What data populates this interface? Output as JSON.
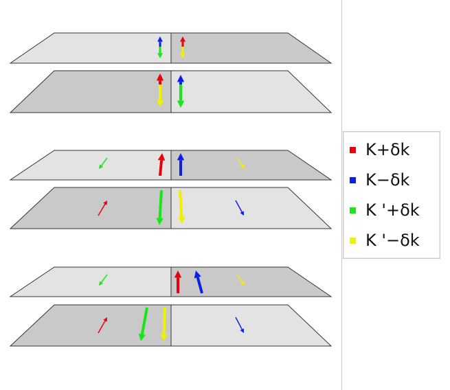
{
  "legend": {
    "items": [
      {
        "label": "K+δk",
        "color": "#e8000b"
      },
      {
        "label": "K−δk",
        "color": "#0a1fe6"
      },
      {
        "label": "K '+δk",
        "color": "#19e619"
      },
      {
        "label": "K '−δk",
        "color": "#f0f000"
      }
    ]
  },
  "colors": {
    "plate_light": "#e3e3e3",
    "plate_dark": "#c9c9c9",
    "red": "#e8000b",
    "blue": "#0a1fe6",
    "green": "#19e619",
    "yellow": "#f0f000"
  }
}
